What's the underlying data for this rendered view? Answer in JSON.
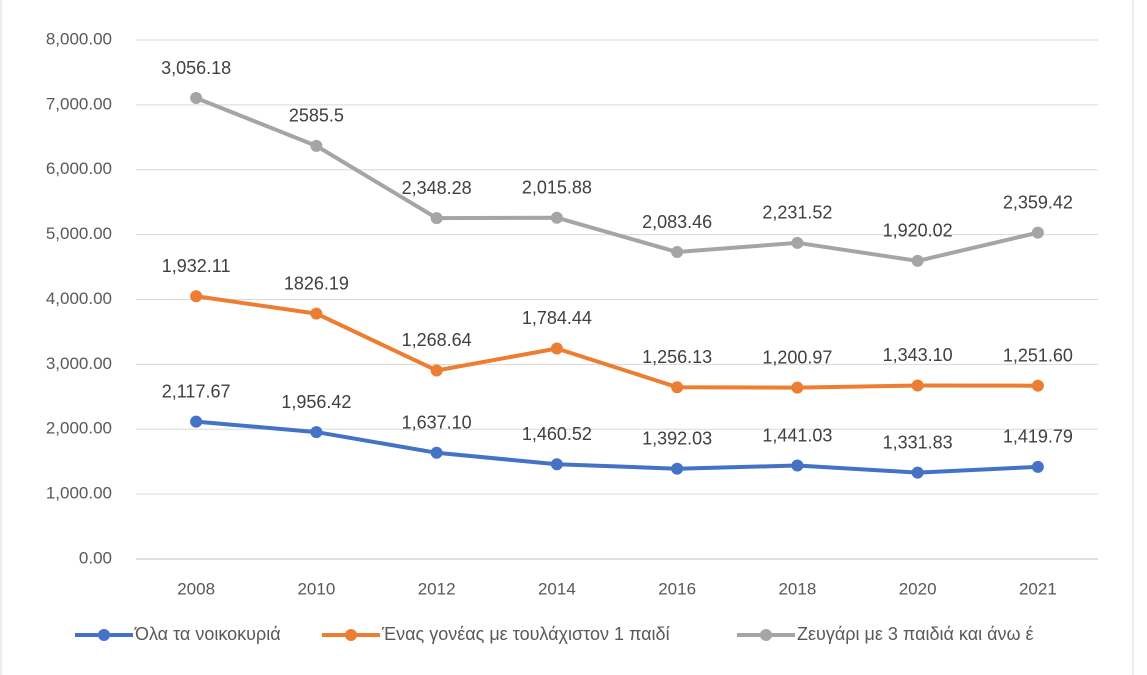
{
  "chart_data": {
    "type": "line",
    "stacked": true,
    "categories": [
      "2008",
      "2010",
      "2012",
      "2014",
      "2016",
      "2018",
      "2020",
      "2021"
    ],
    "series": [
      {
        "name": "Όλα τα νοικοκυριά",
        "color": "#4472c4",
        "values": [
          2117.67,
          1956.42,
          1637.1,
          1460.52,
          1392.03,
          1441.03,
          1331.83,
          1419.79
        ],
        "value_labels": [
          "2,117.67",
          "1,956.42",
          "1,637.10",
          "1,460.52",
          "1,392.03",
          "1,441.03",
          "1,331.83",
          "1,419.79"
        ]
      },
      {
        "name": "Ένας γονέας με τουλάχιστον 1 παιδί",
        "color": "#ed7d31",
        "values": [
          1932.11,
          1826.19,
          1268.64,
          1784.44,
          1256.13,
          1200.97,
          1343.1,
          1251.6
        ],
        "value_labels": [
          "1,932.11",
          "1826.19",
          "1,268.64",
          "1,784.44",
          "1,256.13",
          "1,200.97",
          "1,343.10",
          "1,251.60"
        ]
      },
      {
        "name": "Ζευγάρι με 3 παιδιά και άνω έ",
        "color": "#a5a5a5",
        "values": [
          3056.18,
          2585.5,
          2348.28,
          2015.88,
          2083.46,
          2231.52,
          1920.02,
          2359.42
        ],
        "value_labels": [
          "3,056.18",
          "2585.5",
          "2,348.28",
          "2,015.88",
          "2,083.46",
          "2,231.52",
          "1,920.02",
          "2,359.42"
        ]
      }
    ],
    "ylim": [
      0,
      8000
    ],
    "yticks": [
      {
        "value": 0,
        "label": "0.00"
      },
      {
        "value": 1000,
        "label": "1,000.00"
      },
      {
        "value": 2000,
        "label": "2,000.00"
      },
      {
        "value": 3000,
        "label": "3,000.00"
      },
      {
        "value": 4000,
        "label": "4,000.00"
      },
      {
        "value": 5000,
        "label": "5,000.00"
      },
      {
        "value": 6000,
        "label": "6,000.00"
      },
      {
        "value": 7000,
        "label": "7,000.00"
      },
      {
        "value": 8000,
        "label": "8,000.00"
      }
    ],
    "grid": true,
    "legend": "bottom"
  }
}
